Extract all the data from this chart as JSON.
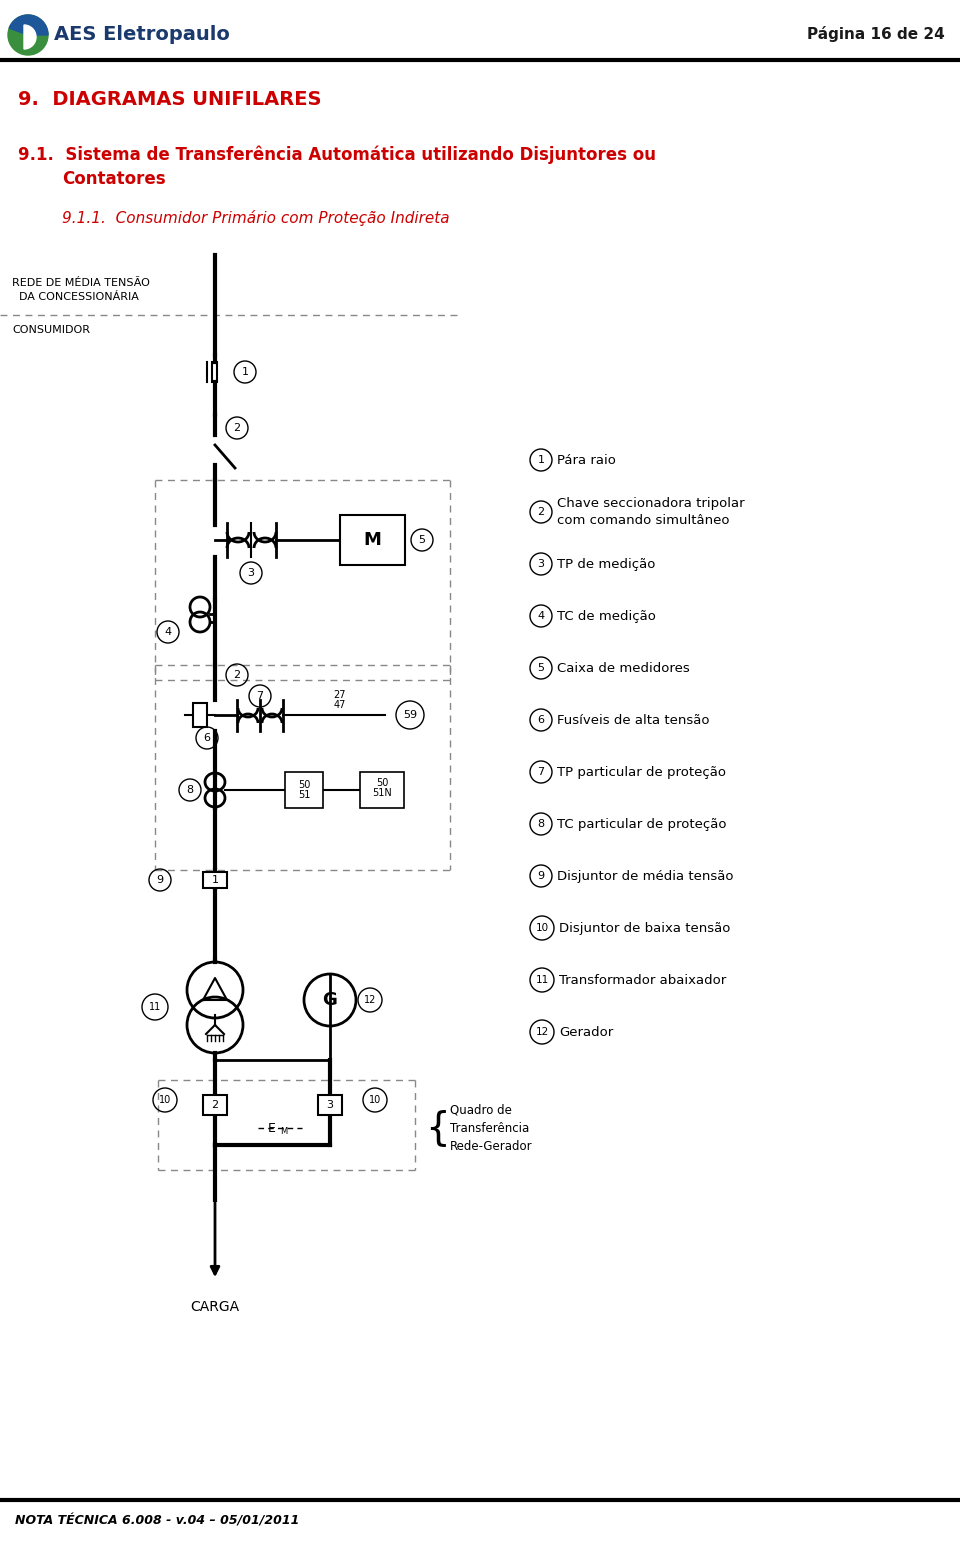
{
  "page_title": "Página 16 de 24",
  "section_title": "9.  DIAGRAMAS UNIFILARES",
  "sub_title_line1": "9.1.  Sistema de Transferência Automática utilizando Disjuntores ou",
  "sub_title_line2": "Contatores",
  "subsub_title": "9.1.1.  Consumidor Primário com Proteção Indireta",
  "label_rede_line1": "REDE DE MÉDIA TENSÃO",
  "label_rede_line2": "  DA CONCESSIONÁRIA",
  "label_consumidor": "CONSUMIDOR",
  "label_carga": "CARGA",
  "label_quadro": "Quadro de\nTransferência\nRede-Gerador",
  "footer_text": "NOTA TÉCNICA 6.008 - v.04 – 05/01/2011",
  "legend": [
    {
      "num": "1",
      "text": "Pára raio"
    },
    {
      "num": "2",
      "text": "Chave seccionadora tripolar\ncom comando simultâneo"
    },
    {
      "num": "3",
      "text": "TP de medição"
    },
    {
      "num": "4",
      "text": "TC de medição"
    },
    {
      "num": "5",
      "text": "Caixa de medidores"
    },
    {
      "num": "6",
      "text": "Fusíveis de alta tensão"
    },
    {
      "num": "7",
      "text": "TP particular de proteção"
    },
    {
      "num": "8",
      "text": "TC particular de proteção"
    },
    {
      "num": "9",
      "text": "Disjuntor de média tensão"
    },
    {
      "num": "10",
      "text": "Disjuntor de baixa tensão"
    },
    {
      "num": "11",
      "text": "Transformador abaixador"
    },
    {
      "num": "12",
      "text": "Gerador"
    }
  ],
  "bg": "#ffffff",
  "lc": "#000000",
  "rc": "#cc0000",
  "dc": "#888888"
}
